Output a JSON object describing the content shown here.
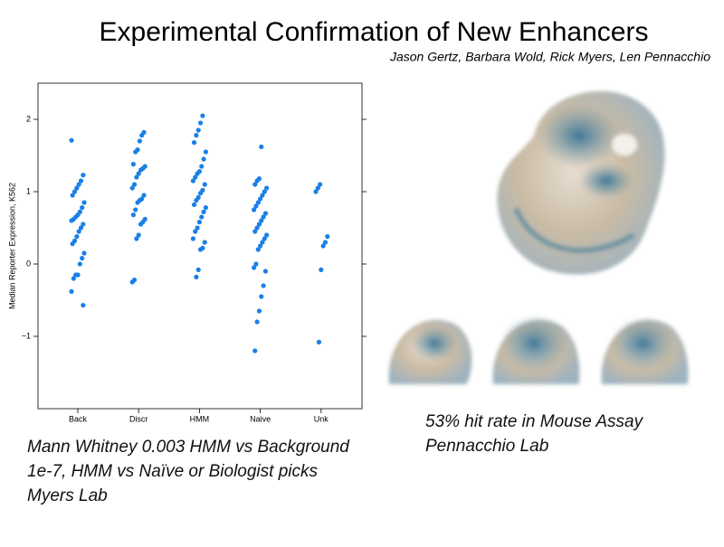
{
  "slide": {
    "title": "Experimental Confirmation of New Enhancers",
    "authors": "Jason Gertz, Barbara Wold, Rick Myers, Len Pennacchio",
    "left_caption": [
      "Mann Whitney 0.003 HMM vs Background",
      "1e-7, HMM vs Naïve or Biologist picks",
      "Myers Lab"
    ],
    "right_caption": [
      "53% hit rate in Mouse Assay",
      "Pennacchio Lab"
    ]
  },
  "chart_data": {
    "type": "strip",
    "y_label": "Median Reporter Expression, K562",
    "categories": [
      "Back",
      "Discr",
      "HMM",
      "Naive",
      "Unk"
    ],
    "color": "#1a80e6",
    "values": [
      [
        1.71,
        1.23,
        1.15,
        1.1,
        1.05,
        1.0,
        0.95,
        0.85,
        0.78,
        0.72,
        0.68,
        0.65,
        0.62,
        0.6,
        0.55,
        0.5,
        0.45,
        0.38,
        0.32,
        0.28,
        0.15,
        0.08,
        0.0,
        -0.15,
        -0.15,
        -0.2,
        -0.38,
        -0.57
      ],
      [
        1.82,
        1.78,
        1.7,
        1.58,
        1.55,
        1.38,
        1.35,
        1.32,
        1.3,
        1.25,
        1.2,
        1.1,
        1.05,
        0.95,
        0.9,
        0.88,
        0.85,
        0.75,
        0.68,
        0.62,
        0.58,
        0.55,
        0.4,
        0.35,
        -0.22,
        -0.25
      ],
      [
        2.05,
        1.95,
        1.85,
        1.78,
        1.68,
        1.55,
        1.45,
        1.35,
        1.28,
        1.25,
        1.2,
        1.15,
        1.1,
        1.02,
        0.98,
        0.92,
        0.88,
        0.82,
        0.78,
        0.72,
        0.65,
        0.58,
        0.5,
        0.45,
        0.35,
        0.3,
        0.22,
        0.2,
        -0.08,
        -0.18
      ],
      [
        1.62,
        1.18,
        1.15,
        1.1,
        1.05,
        1.0,
        0.95,
        0.9,
        0.85,
        0.8,
        0.75,
        0.7,
        0.65,
        0.6,
        0.55,
        0.5,
        0.45,
        0.4,
        0.35,
        0.3,
        0.25,
        0.2,
        0.0,
        -0.05,
        -0.1,
        -0.3,
        -0.45,
        -0.65,
        -0.8,
        -1.2
      ],
      [
        1.1,
        1.05,
        1.0,
        0.38,
        0.3,
        0.25,
        -0.08,
        -1.08
      ]
    ],
    "ylim": [
      -2,
      2.5
    ],
    "yticks": [
      {
        "value": -1,
        "label": "−1"
      },
      0,
      1,
      2
    ]
  }
}
